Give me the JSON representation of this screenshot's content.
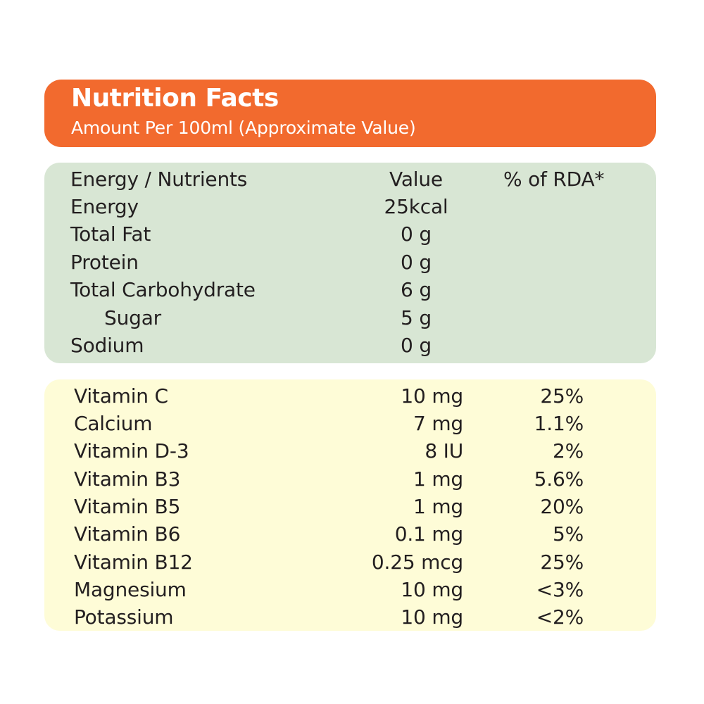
{
  "header": {
    "title": "Nutrition Facts",
    "subtitle": "Amount Per 100ml (Approximate Value)"
  },
  "nutrients_table": {
    "columns": [
      "Energy / Nutrients",
      "Value",
      "% of RDA*"
    ],
    "rows": [
      {
        "name": "Energy",
        "value": "25kcal"
      },
      {
        "name": "Total Fat",
        "value": "0 g"
      },
      {
        "name": "Protein",
        "value": "0 g"
      },
      {
        "name": "Total Carbohydrate",
        "value": "6 g"
      },
      {
        "name": "Sugar",
        "value": "5 g"
      },
      {
        "name": "Sodium",
        "value": "0 g"
      }
    ]
  },
  "vitamins_table": {
    "rows": [
      {
        "name": "Vitamin C",
        "value": "10 mg",
        "rda": "25%"
      },
      {
        "name": "Calcium",
        "value": "7 mg",
        "rda": "1.1%"
      },
      {
        "name": "Vitamin D-3",
        "value": "8 IU",
        "rda": "2%"
      },
      {
        "name": "Vitamin B3",
        "value": "1 mg",
        "rda": "5.6%"
      },
      {
        "name": "Vitamin B5",
        "value": "1 mg",
        "rda": "20%"
      },
      {
        "name": "Vitamin B6",
        "value": "0.1 mg",
        "rda": "5%"
      },
      {
        "name": "Vitamin B12",
        "value": "0.25 mcg",
        "rda": "25%"
      },
      {
        "name": "Magnesium",
        "value": "10 mg",
        "rda": "<3%"
      },
      {
        "name": "Potassium",
        "value": "10 mg",
        "rda": "<2%"
      }
    ]
  },
  "colors": {
    "header_background": "#f26a2e",
    "nutrients_panel": "#d8e6d4",
    "vitamins_panel": "#fefcd7",
    "text": "#231f20"
  }
}
